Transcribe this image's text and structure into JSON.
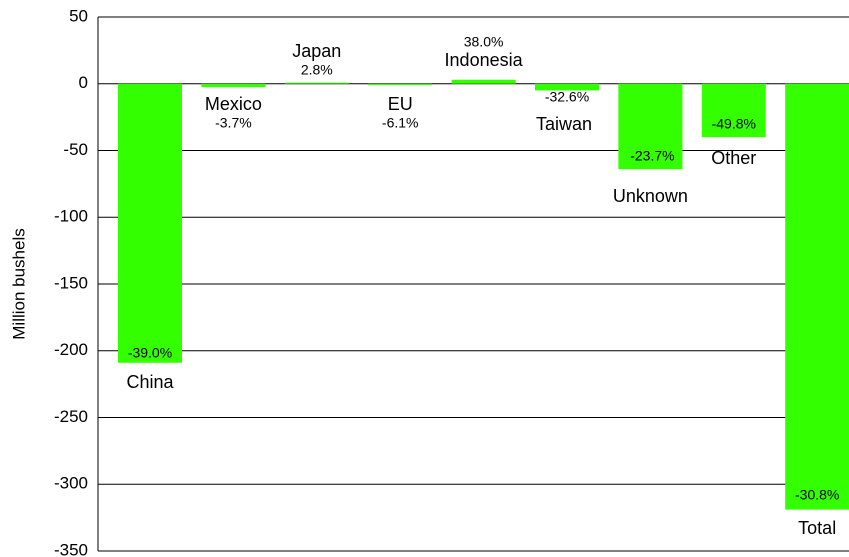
{
  "chart_data": {
    "type": "bar",
    "y_label": "Million bushels",
    "categories": [
      "China",
      "Mexico",
      "Japan",
      "EU",
      "Indonesia",
      "Taiwan",
      "Unknown",
      "Other",
      "Total"
    ],
    "values": [
      -209,
      -2.5,
      0.8,
      -1,
      3,
      -5,
      -64,
      -40,
      -319
    ],
    "change_labels": [
      "-39.0%",
      "-3.7%",
      "2.8%",
      "-6.1%",
      "38.0%",
      "-32.6%",
      "-23.7%",
      "-49.8%",
      "-30.8%"
    ],
    "color": "#33ff00",
    "ylim": [
      -350,
      50
    ],
    "yticks": [
      -350,
      -300,
      -250,
      -200,
      -150,
      -100,
      -50,
      0,
      50
    ],
    "grid": true
  }
}
